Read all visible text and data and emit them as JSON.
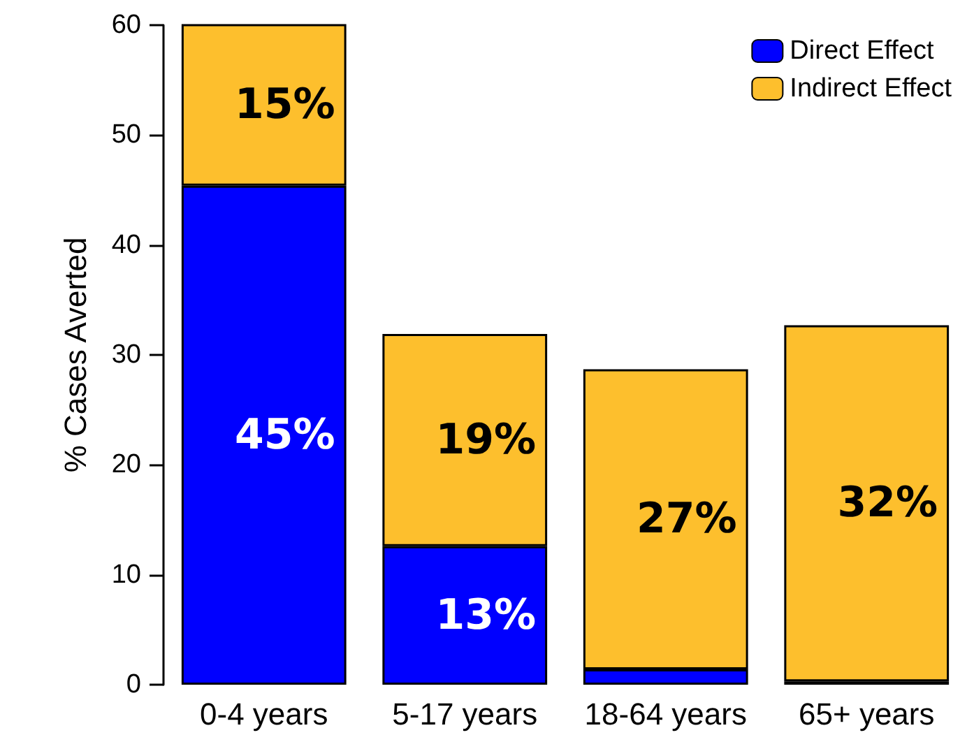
{
  "chart_data": {
    "type": "bar",
    "stacked": true,
    "ylabel": "% Cases Averted",
    "categories": [
      "0-4 years",
      "5-17 years",
      "18-64 years",
      "65+ years"
    ],
    "series": [
      {
        "name": "Direct Effect",
        "color": "#0000ff",
        "values": [
          45.4,
          12.6,
          1.4,
          0.3
        ],
        "value_labels": [
          "45%",
          "13%",
          null,
          null
        ]
      },
      {
        "name": "Indirect Effect",
        "color": "#fdbf2d",
        "values": [
          14.8,
          19.3,
          27.3,
          32.4
        ],
        "value_labels": [
          "15%",
          "19%",
          "27%",
          "32%"
        ]
      }
    ],
    "ylim": [
      0,
      60
    ],
    "yticks": [
      0,
      10,
      20,
      30,
      40,
      50,
      60
    ],
    "grid": false,
    "legend": "top right"
  }
}
